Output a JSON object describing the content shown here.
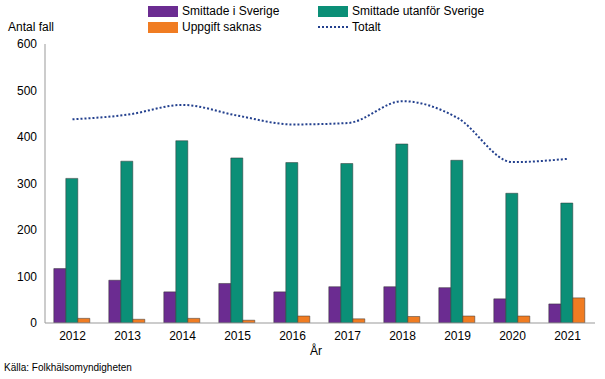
{
  "chart_data": {
    "type": "bar",
    "ylabel": "Antal fall",
    "xlabel": "År",
    "source": "Källa: Folkhälsomyndigheten",
    "categories": [
      "2012",
      "2013",
      "2014",
      "2015",
      "2016",
      "2017",
      "2018",
      "2019",
      "2020",
      "2021"
    ],
    "series": [
      {
        "name": "Smittade i Sverige",
        "color": "#6b2c91",
        "type": "bar",
        "values": [
          117,
          92,
          67,
          85,
          67,
          78,
          78,
          76,
          52,
          41
        ]
      },
      {
        "name": "Smittade utanför Sverige",
        "color": "#0b8f77",
        "type": "bar",
        "values": [
          311,
          348,
          392,
          355,
          345,
          343,
          385,
          350,
          279,
          258
        ]
      },
      {
        "name": "Uppgift saknas",
        "color": "#f07c22",
        "type": "bar",
        "values": [
          10,
          8,
          10,
          6,
          15,
          9,
          14,
          15,
          15,
          54
        ]
      },
      {
        "name": "Totalt",
        "color": "#23408e",
        "type": "line",
        "line_style": "dotted",
        "values": [
          438,
          448,
          469,
          446,
          427,
          430,
          477,
          441,
          346,
          353
        ]
      }
    ],
    "ylim": [
      0,
      600
    ],
    "yticks": [
      0,
      100,
      200,
      300,
      400,
      500,
      600
    ],
    "grid": false,
    "legend": "top"
  }
}
